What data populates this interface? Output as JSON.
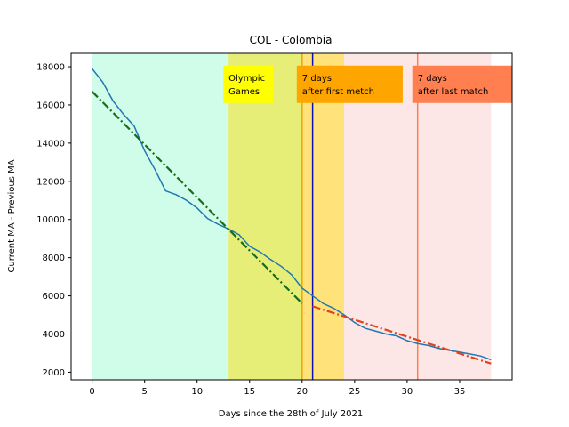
{
  "chart_data": {
    "type": "line",
    "title": "COL - Colombia",
    "xlabel": "Days since the 28th of July 2021",
    "ylabel": "Current MA - Previous MA",
    "xlim": [
      -2,
      40
    ],
    "ylim": [
      1600,
      18700
    ],
    "x_ticks": [
      0,
      5,
      10,
      15,
      20,
      25,
      30,
      35
    ],
    "y_ticks": [
      2000,
      4000,
      6000,
      8000,
      10000,
      12000,
      14000,
      16000,
      18000
    ],
    "grid": false,
    "series": [
      {
        "color": "#1f77b4",
        "style": "solid",
        "x": [
          0,
          1,
          2,
          3,
          4,
          5,
          6,
          7,
          8,
          9,
          10,
          11,
          12,
          13,
          14,
          15,
          16,
          17,
          18,
          19,
          20,
          21,
          22,
          23,
          24,
          25,
          26,
          27,
          28,
          29,
          30,
          31,
          32,
          33,
          34,
          35,
          36,
          37,
          38
        ],
        "values": [
          17900,
          17200,
          16200,
          15500,
          14900,
          13600,
          12600,
          11500,
          11300,
          11000,
          10600,
          10050,
          9750,
          9500,
          9200,
          8600,
          8300,
          7900,
          7550,
          7100,
          6400,
          6000,
          5600,
          5350,
          5000,
          4600,
          4300,
          4150,
          4000,
          3900,
          3650,
          3500,
          3400,
          3250,
          3150,
          3050,
          2950,
          2850,
          2650
        ]
      },
      {
        "color": "#1a6b1a",
        "style": "dashdot",
        "x": [
          0,
          20
        ],
        "values": [
          16700,
          5600
        ]
      },
      {
        "color": "#e0431f",
        "style": "dashdot",
        "x": [
          21,
          38
        ],
        "values": [
          5450,
          2450
        ]
      }
    ],
    "regions": [
      {
        "x_start": 0,
        "x_end": 13,
        "color": "#cffde9"
      },
      {
        "x_start": 13,
        "x_end": 20,
        "color": "#e6ee77"
      },
      {
        "x_start": 20,
        "x_end": 24,
        "color": "#ffe27a"
      },
      {
        "x_start": 24,
        "x_end": 38,
        "color": "#fde6e6"
      }
    ],
    "vlines": [
      {
        "x": 20,
        "color": "#f0a500"
      },
      {
        "x": 21,
        "color": "#0a12b5"
      },
      {
        "x": 31,
        "color": "#ff7f50"
      }
    ],
    "annotations": [
      {
        "lines": [
          "Olympic",
          "Games"
        ],
        "bg": "#ffff00",
        "x": 13,
        "y": 17500
      },
      {
        "lines": [
          "7 days",
          "after first metch"
        ],
        "bg": "#ffa500",
        "x": 20,
        "y": 17500
      },
      {
        "lines": [
          "7 days",
          "after last match"
        ],
        "bg": "#ff7f50",
        "x": 31,
        "y": 17500
      }
    ]
  }
}
